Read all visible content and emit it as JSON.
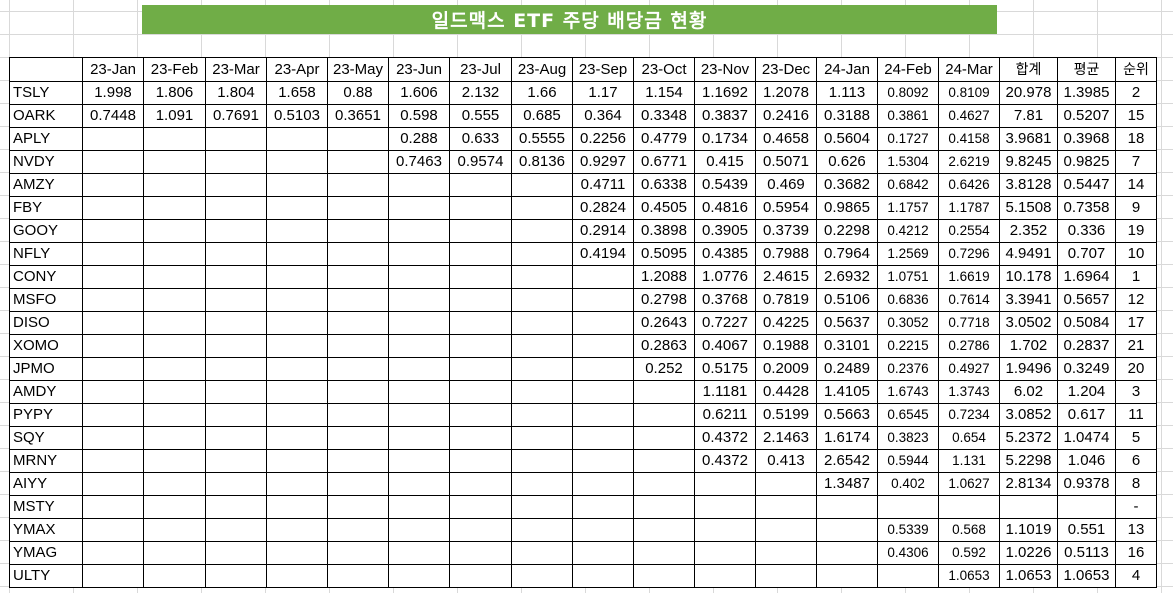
{
  "title": "일드맥스 ETF 주당 배당금 현황",
  "headers": [
    "",
    "23-Jan",
    "23-Feb",
    "23-Mar",
    "23-Apr",
    "23-May",
    "23-Jun",
    "23-Jul",
    "23-Aug",
    "23-Sep",
    "23-Oct",
    "23-Nov",
    "23-Dec",
    "24-Jan",
    "24-Feb",
    "24-Mar",
    "합계",
    "평균",
    "순위"
  ],
  "rows": [
    [
      "TSLY",
      "1.998",
      "1.806",
      "1.804",
      "1.658",
      "0.88",
      "1.606",
      "2.132",
      "1.66",
      "1.17",
      "1.154",
      "1.1692",
      "1.2078",
      "1.113",
      "0.8092",
      "0.8109",
      "20.978",
      "1.3985",
      "2"
    ],
    [
      "OARK",
      "0.7448",
      "1.091",
      "0.7691",
      "0.5103",
      "0.3651",
      "0.598",
      "0.555",
      "0.685",
      "0.364",
      "0.3348",
      "0.3837",
      "0.2416",
      "0.3188",
      "0.3861",
      "0.4627",
      "7.81",
      "0.5207",
      "15"
    ],
    [
      "APLY",
      "",
      "",
      "",
      "",
      "",
      "0.288",
      "0.633",
      "0.5555",
      "0.2256",
      "0.4779",
      "0.1734",
      "0.4658",
      "0.5604",
      "0.1727",
      "0.4158",
      "3.9681",
      "0.3968",
      "18"
    ],
    [
      "NVDY",
      "",
      "",
      "",
      "",
      "",
      "0.7463",
      "0.9574",
      "0.8136",
      "0.9297",
      "0.6771",
      "0.415",
      "0.5071",
      "0.626",
      "1.5304",
      "2.6219",
      "9.8245",
      "0.9825",
      "7"
    ],
    [
      "AMZY",
      "",
      "",
      "",
      "",
      "",
      "",
      "",
      "",
      "0.4711",
      "0.6338",
      "0.5439",
      "0.469",
      "0.3682",
      "0.6842",
      "0.6426",
      "3.8128",
      "0.5447",
      "14"
    ],
    [
      "FBY",
      "",
      "",
      "",
      "",
      "",
      "",
      "",
      "",
      "0.2824",
      "0.4505",
      "0.4816",
      "0.5954",
      "0.9865",
      "1.1757",
      "1.1787",
      "5.1508",
      "0.7358",
      "9"
    ],
    [
      "GOOY",
      "",
      "",
      "",
      "",
      "",
      "",
      "",
      "",
      "0.2914",
      "0.3898",
      "0.3905",
      "0.3739",
      "0.2298",
      "0.4212",
      "0.2554",
      "2.352",
      "0.336",
      "19"
    ],
    [
      "NFLY",
      "",
      "",
      "",
      "",
      "",
      "",
      "",
      "",
      "0.4194",
      "0.5095",
      "0.4385",
      "0.7988",
      "0.7964",
      "1.2569",
      "0.7296",
      "4.9491",
      "0.707",
      "10"
    ],
    [
      "CONY",
      "",
      "",
      "",
      "",
      "",
      "",
      "",
      "",
      "",
      "1.2088",
      "1.0776",
      "2.4615",
      "2.6932",
      "1.0751",
      "1.6619",
      "10.178",
      "1.6964",
      "1"
    ],
    [
      "MSFO",
      "",
      "",
      "",
      "",
      "",
      "",
      "",
      "",
      "",
      "0.2798",
      "0.3768",
      "0.7819",
      "0.5106",
      "0.6836",
      "0.7614",
      "3.3941",
      "0.5657",
      "12"
    ],
    [
      "DISO",
      "",
      "",
      "",
      "",
      "",
      "",
      "",
      "",
      "",
      "0.2643",
      "0.7227",
      "0.4225",
      "0.5637",
      "0.3052",
      "0.7718",
      "3.0502",
      "0.5084",
      "17"
    ],
    [
      "XOMO",
      "",
      "",
      "",
      "",
      "",
      "",
      "",
      "",
      "",
      "0.2863",
      "0.4067",
      "0.1988",
      "0.3101",
      "0.2215",
      "0.2786",
      "1.702",
      "0.2837",
      "21"
    ],
    [
      "JPMO",
      "",
      "",
      "",
      "",
      "",
      "",
      "",
      "",
      "",
      "0.252",
      "0.5175",
      "0.2009",
      "0.2489",
      "0.2376",
      "0.4927",
      "1.9496",
      "0.3249",
      "20"
    ],
    [
      "AMDY",
      "",
      "",
      "",
      "",
      "",
      "",
      "",
      "",
      "",
      "",
      "1.1181",
      "0.4428",
      "1.4105",
      "1.6743",
      "1.3743",
      "6.02",
      "1.204",
      "3"
    ],
    [
      "PYPY",
      "",
      "",
      "",
      "",
      "",
      "",
      "",
      "",
      "",
      "",
      "0.6211",
      "0.5199",
      "0.5663",
      "0.6545",
      "0.7234",
      "3.0852",
      "0.617",
      "11"
    ],
    [
      "SQY",
      "",
      "",
      "",
      "",
      "",
      "",
      "",
      "",
      "",
      "",
      "0.4372",
      "2.1463",
      "1.6174",
      "0.3823",
      "0.654",
      "5.2372",
      "1.0474",
      "5"
    ],
    [
      "MRNY",
      "",
      "",
      "",
      "",
      "",
      "",
      "",
      "",
      "",
      "",
      "0.4372",
      "0.413",
      "2.6542",
      "0.5944",
      "1.131",
      "5.2298",
      "1.046",
      "6"
    ],
    [
      "AIYY",
      "",
      "",
      "",
      "",
      "",
      "",
      "",
      "",
      "",
      "",
      "",
      "",
      "1.3487",
      "0.402",
      "1.0627",
      "2.8134",
      "0.9378",
      "8"
    ],
    [
      "MSTY",
      "",
      "",
      "",
      "",
      "",
      "",
      "",
      "",
      "",
      "",
      "",
      "",
      "",
      "",
      "",
      "",
      "",
      "-"
    ],
    [
      "YMAX",
      "",
      "",
      "",
      "",
      "",
      "",
      "",
      "",
      "",
      "",
      "",
      "",
      "",
      "0.5339",
      "0.568",
      "1.1019",
      "0.551",
      "13"
    ],
    [
      "YMAG",
      "",
      "",
      "",
      "",
      "",
      "",
      "",
      "",
      "",
      "",
      "",
      "",
      "",
      "0.4306",
      "0.592",
      "1.0226",
      "0.5113",
      "16"
    ],
    [
      "ULTY",
      "",
      "",
      "",
      "",
      "",
      "",
      "",
      "",
      "",
      "",
      "",
      "",
      "",
      "",
      "1.0653",
      "1.0653",
      "1.0653",
      "4"
    ]
  ]
}
